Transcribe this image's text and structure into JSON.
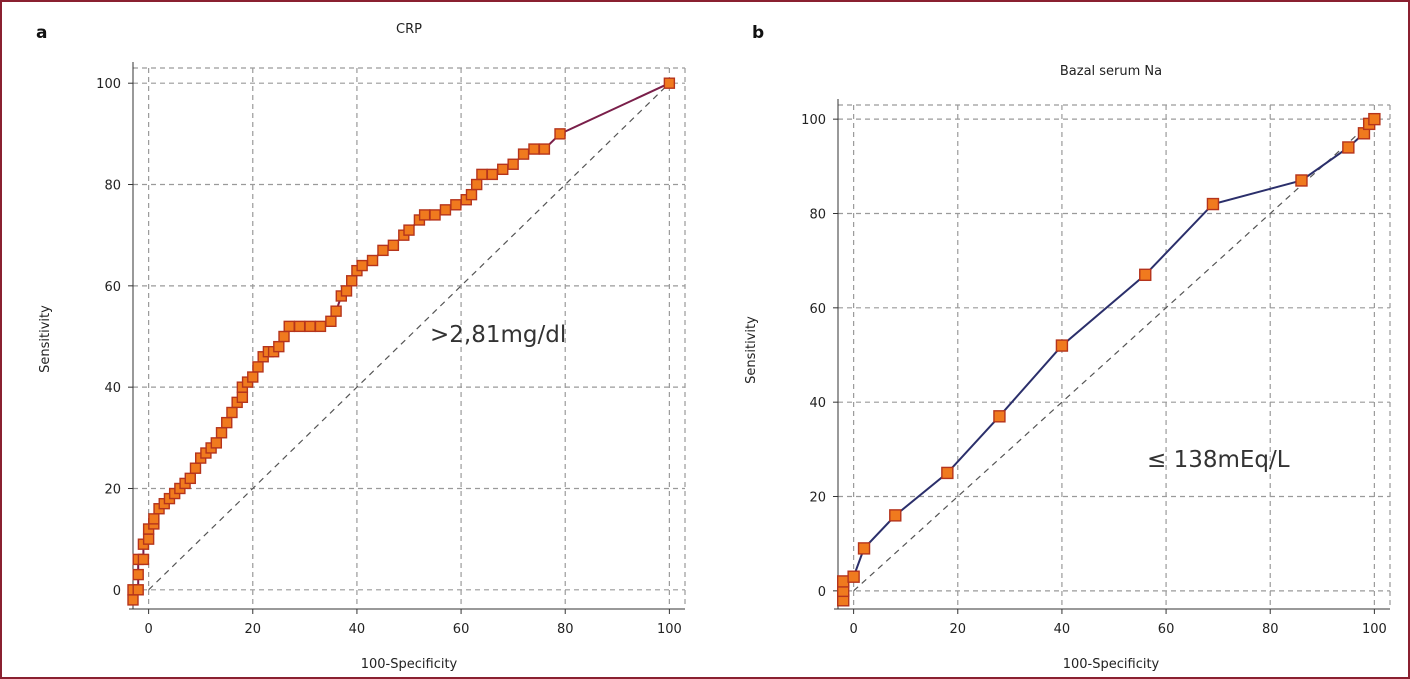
{
  "colors": {
    "frame": "#8a2030",
    "roc_line_a": "#7a1f4a",
    "roc_line_b": "#2b2f6b",
    "marker_fill": "#f07a1e",
    "marker_stroke": "#b5341c"
  },
  "chart_data": [
    {
      "type": "line",
      "panel_label": "a",
      "title": "CRP",
      "xlabel": "100-Specificity",
      "ylabel": "Sensitivity",
      "xlim": [
        -3,
        103
      ],
      "ylim": [
        -3,
        103
      ],
      "xticks": [
        0,
        20,
        40,
        60,
        80,
        100
      ],
      "yticks": [
        0,
        20,
        40,
        60,
        80,
        100
      ],
      "grid": true,
      "annotation": ">2,81mg/dl",
      "reference_line": [
        [
          0,
          0
        ],
        [
          100,
          100
        ]
      ],
      "series": [
        {
          "x": [
            -3,
            -3,
            -2,
            -2,
            -2,
            -1,
            -1,
            0,
            0,
            1,
            1,
            2,
            3,
            4,
            5,
            6,
            7,
            8,
            9,
            10,
            11,
            12,
            13,
            14,
            15,
            16,
            17,
            18,
            18,
            19,
            20,
            21,
            22,
            23,
            24,
            25,
            26,
            27,
            29,
            31,
            33,
            35,
            36,
            37,
            38,
            39,
            40,
            41,
            43,
            45,
            47,
            49,
            50,
            52,
            53,
            55,
            57,
            59,
            61,
            62,
            63,
            64,
            66,
            68,
            70,
            72,
            74,
            76,
            79,
            100
          ],
          "y": [
            -2,
            0,
            0,
            3,
            6,
            6,
            9,
            10,
            12,
            13,
            14,
            16,
            17,
            18,
            19,
            20,
            21,
            22,
            24,
            26,
            27,
            28,
            29,
            31,
            33,
            35,
            37,
            38,
            40,
            41,
            42,
            44,
            46,
            47,
            47,
            48,
            50,
            52,
            52,
            52,
            52,
            53,
            55,
            58,
            59,
            61,
            63,
            64,
            65,
            67,
            68,
            70,
            71,
            73,
            74,
            74,
            75,
            76,
            77,
            78,
            80,
            82,
            82,
            83,
            84,
            86,
            87,
            87,
            90,
            100
          ]
        }
      ]
    },
    {
      "type": "line",
      "panel_label": "b",
      "title": "Bazal serum Na",
      "xlabel": "100-Specificity",
      "ylabel": "Sensitivity",
      "xlim": [
        -3,
        103
      ],
      "ylim": [
        -3,
        103
      ],
      "xticks": [
        0,
        20,
        40,
        60,
        80,
        100
      ],
      "yticks": [
        0,
        20,
        40,
        60,
        80,
        100
      ],
      "grid": true,
      "annotation": "≤ 138mEq/L",
      "reference_line": [
        [
          0,
          0
        ],
        [
          100,
          100
        ]
      ],
      "series": [
        {
          "x": [
            -2,
            -2,
            -2,
            0,
            2,
            8,
            18,
            28,
            40,
            56,
            69,
            86,
            95,
            98,
            99,
            100
          ],
          "y": [
            -2,
            0,
            2,
            3,
            9,
            16,
            25,
            37,
            52,
            67,
            82,
            87,
            94,
            97,
            99,
            100
          ]
        }
      ]
    }
  ]
}
